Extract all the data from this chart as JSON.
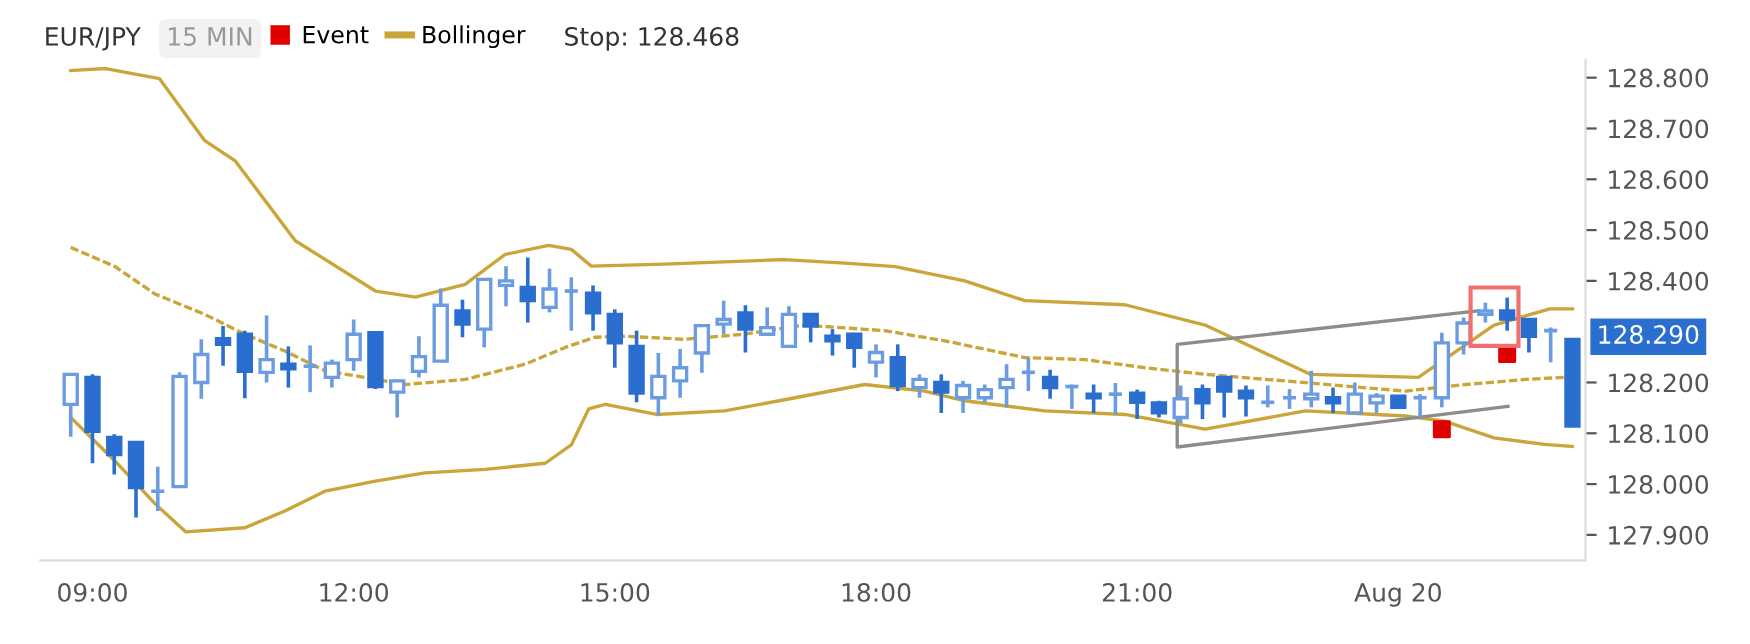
{
  "chart_data": {
    "type": "candlestick",
    "title": "EUR/JPY",
    "subtitle": "15 MIN",
    "annotations": [
      "Stop: 128.468",
      {
        "text": "128.290",
        "x": 26.15,
        "y": 128.29
      }
    ],
    "x": [
      8.75,
      9,
      9.25,
      9.5,
      9.75,
      10,
      10.25,
      10.5,
      10.75,
      11,
      11.25,
      11.5,
      11.75,
      12,
      12.25,
      12.5,
      12.75,
      13,
      13.25,
      13.5,
      13.75,
      14,
      14.25,
      14.5,
      14.75,
      15,
      15.25,
      15.5,
      15.75,
      16,
      16.25,
      16.5,
      16.75,
      17,
      17.25,
      17.5,
      17.75,
      18,
      18.25,
      18.5,
      18.75,
      19,
      19.25,
      19.5,
      19.75,
      20,
      20.25,
      20.5,
      20.75,
      21,
      21.25,
      21.5,
      21.75,
      22,
      22.25,
      22.5,
      22.75,
      23,
      23.25,
      23.5,
      23.75,
      24,
      24.25,
      24.5,
      24.75,
      25,
      25.25,
      25.5,
      25.75,
      26
    ],
    "ohlc": [
      [
        128.157,
        128.216,
        128.093,
        128.216
      ],
      [
        128.21,
        128.216,
        128.041,
        128.104
      ],
      [
        128.092,
        128.098,
        128.019,
        128.058
      ],
      [
        128.082,
        128.085,
        127.934,
        127.993
      ],
      [
        127.986,
        128.034,
        127.947,
        127.986
      ],
      [
        127.995,
        128.22,
        127.995,
        128.212
      ],
      [
        128.2,
        128.285,
        128.168,
        128.255
      ],
      [
        128.286,
        128.311,
        128.233,
        128.275
      ],
      [
        128.295,
        128.302,
        128.169,
        128.222
      ],
      [
        128.22,
        128.332,
        128.2,
        128.245
      ],
      [
        128.236,
        128.271,
        128.19,
        128.227
      ],
      [
        128.232,
        128.273,
        128.181,
        128.232
      ],
      [
        128.21,
        128.245,
        128.19,
        128.238
      ],
      [
        128.245,
        128.324,
        128.223,
        128.295
      ],
      [
        128.298,
        128.298,
        128.187,
        128.192
      ],
      [
        128.181,
        128.203,
        128.131,
        128.203
      ],
      [
        128.222,
        128.291,
        128.21,
        128.251
      ],
      [
        128.242,
        128.385,
        128.242,
        128.352
      ],
      [
        128.341,
        128.363,
        128.289,
        128.315
      ],
      [
        128.305,
        128.403,
        128.269,
        128.403
      ],
      [
        128.391,
        128.429,
        128.35,
        128.4
      ],
      [
        128.387,
        128.446,
        128.318,
        128.361
      ],
      [
        128.348,
        128.424,
        128.338,
        128.384
      ],
      [
        128.38,
        128.407,
        128.302,
        128.38
      ],
      [
        128.376,
        128.391,
        128.302,
        128.337
      ],
      [
        128.334,
        128.344,
        128.229,
        128.278
      ],
      [
        128.271,
        128.302,
        128.161,
        128.179
      ],
      [
        128.17,
        128.258,
        128.135,
        128.212
      ],
      [
        128.203,
        128.266,
        128.17,
        128.229
      ],
      [
        128.258,
        128.312,
        128.219,
        128.312
      ],
      [
        128.315,
        128.361,
        128.295,
        128.324
      ],
      [
        128.337,
        128.352,
        128.259,
        128.305
      ],
      [
        128.295,
        128.348,
        128.292,
        128.308
      ],
      [
        128.271,
        128.35,
        128.269,
        128.334
      ],
      [
        128.334,
        128.334,
        128.279,
        128.311
      ],
      [
        128.291,
        128.305,
        128.253,
        128.282
      ],
      [
        128.295,
        128.295,
        128.229,
        128.269
      ],
      [
        128.24,
        128.275,
        128.21,
        128.259
      ],
      [
        128.249,
        128.275,
        128.183,
        128.194
      ],
      [
        128.19,
        128.216,
        128.17,
        128.206
      ],
      [
        128.2,
        128.216,
        128.14,
        128.181
      ],
      [
        128.17,
        128.203,
        128.14,
        128.194
      ],
      [
        128.17,
        128.196,
        128.16,
        128.186
      ],
      [
        128.19,
        128.236,
        128.151,
        128.206
      ],
      [
        128.22,
        128.249,
        128.183,
        128.22
      ],
      [
        128.21,
        128.225,
        128.168,
        128.19
      ],
      [
        128.192,
        128.196,
        128.148,
        128.192
      ],
      [
        128.177,
        128.196,
        128.14,
        128.17
      ],
      [
        128.177,
        128.199,
        128.137,
        128.177
      ],
      [
        128.179,
        128.186,
        128.128,
        128.161
      ],
      [
        128.16,
        128.164,
        128.131,
        128.14
      ],
      [
        128.131,
        128.194,
        128.12,
        128.168
      ],
      [
        128.186,
        128.196,
        128.128,
        128.16
      ],
      [
        128.21,
        128.21,
        128.131,
        128.183
      ],
      [
        128.183,
        128.194,
        128.133,
        128.17
      ],
      [
        128.161,
        128.194,
        128.151,
        128.161
      ],
      [
        128.17,
        128.187,
        128.148,
        128.17
      ],
      [
        128.168,
        128.223,
        128.151,
        128.177
      ],
      [
        128.17,
        128.19,
        128.14,
        128.16
      ],
      [
        128.14,
        128.2,
        128.14,
        128.177
      ],
      [
        128.16,
        128.179,
        128.14,
        128.173
      ],
      [
        128.173,
        128.173,
        128.151,
        128.151
      ],
      [
        128.17,
        128.177,
        128.131,
        128.17
      ],
      [
        128.17,
        128.298,
        128.151,
        128.278
      ],
      [
        128.278,
        128.328,
        128.255,
        128.317
      ],
      [
        128.334,
        128.357,
        128.318,
        128.341
      ],
      [
        128.341,
        128.367,
        128.302,
        128.325
      ],
      [
        128.324,
        128.324,
        128.259,
        128.291
      ],
      [
        128.302,
        128.308,
        128.24,
        128.302
      ],
      [
        128.285,
        128.285,
        128.114,
        128.114
      ]
    ],
    "series": [
      {
        "type": "scatter",
        "name": "Event",
        "color": "#e00000",
        "marker": "square",
        "x": [
          24.5,
          25.25
        ],
        "values": [
          128.108,
          128.256
        ]
      },
      {
        "type": "line",
        "name": "Bollinger",
        "color": "#c9a53a",
        "x": [
          8.75,
          9.15,
          9.77,
          10.29,
          10.64,
          11.33,
          12.25,
          12.71,
          13.28,
          13.74,
          14.24,
          14.5,
          14.73,
          15.57,
          16.95,
          17.64,
          18.22,
          19.02,
          19.71,
          20.86,
          21.78,
          22.99,
          24.23,
          25.1,
          25.74,
          26.0
        ],
        "values": [
          128.814,
          128.818,
          128.798,
          128.676,
          128.636,
          128.479,
          128.38,
          128.368,
          128.393,
          128.452,
          128.47,
          128.462,
          128.429,
          128.433,
          128.442,
          128.435,
          128.428,
          128.4,
          128.361,
          128.353,
          128.313,
          128.216,
          128.21,
          128.313,
          128.345,
          128.345
        ]
      },
      {
        "type": "line",
        "color": "#c9a53a",
        "line_style": "dashed",
        "x": [
          8.75,
          9.26,
          9.72,
          10.29,
          10.75,
          11.21,
          11.67,
          12.13,
          12.59,
          13.28,
          13.97,
          14.43,
          14.77,
          15.12,
          15.8,
          16.49,
          17.18,
          18.1,
          18.79,
          19.71,
          20.4,
          21.09,
          21.78,
          22.7,
          24.08,
          24.77,
          25.46,
          25.9
        ],
        "values": [
          128.466,
          128.428,
          128.374,
          128.334,
          128.295,
          128.262,
          128.223,
          128.21,
          128.196,
          128.206,
          128.236,
          128.269,
          128.289,
          128.291,
          128.285,
          128.295,
          128.313,
          128.302,
          128.282,
          128.249,
          128.245,
          128.229,
          128.216,
          128.203,
          128.183,
          128.196,
          128.206,
          128.21
        ]
      },
      {
        "type": "line",
        "color": "#c9a53a",
        "x": [
          8.75,
          9.26,
          9.72,
          10.07,
          10.75,
          11.21,
          11.67,
          12.25,
          12.82,
          13.51,
          14.2,
          14.5,
          14.7,
          14.89,
          15.48,
          16.26,
          16.95,
          17.87,
          18.56,
          19.02,
          19.94,
          20.86,
          21.78,
          22.93,
          24.08,
          24.53,
          25.1,
          25.68,
          26.0
        ],
        "values": [
          128.131,
          128.045,
          127.961,
          127.906,
          127.914,
          127.947,
          127.986,
          128.006,
          128.022,
          128.029,
          128.041,
          128.077,
          128.148,
          128.157,
          128.137,
          128.144,
          128.166,
          128.196,
          128.183,
          128.164,
          128.144,
          128.137,
          128.108,
          128.144,
          128.134,
          128.124,
          128.091,
          128.078,
          128.074
        ]
      },
      {
        "type": "line",
        "color": "#8c8c8c",
        "x": [
          25.26,
          21.46,
          21.46,
          24.92
        ],
        "values": [
          128.153,
          128.073,
          128.275,
          128.341
        ]
      }
    ],
    "xlim": [
      8.4,
      26.15
    ],
    "ylim": [
      127.85,
      128.835
    ],
    "xticks": [
      {
        "value": 9,
        "label": "09:00"
      },
      {
        "value": 12,
        "label": "12:00"
      },
      {
        "value": 15,
        "label": "15:00"
      },
      {
        "value": 18,
        "label": "18:00"
      },
      {
        "value": 21,
        "label": "21:00"
      },
      {
        "value": 24,
        "label": "Aug 20"
      }
    ],
    "yticks": [
      {
        "value": 127.9,
        "label": "127.900"
      },
      {
        "value": 128.0,
        "label": "128.000"
      },
      {
        "value": 128.1,
        "label": "128.100"
      },
      {
        "value": 128.2,
        "label": "128.200"
      },
      {
        "value": 128.4,
        "label": "128.400"
      },
      {
        "value": 128.5,
        "label": "128.500"
      },
      {
        "value": 128.6,
        "label": "128.600"
      },
      {
        "value": 128.7,
        "label": "128.700"
      },
      {
        "value": 128.8,
        "label": "128.800"
      }
    ],
    "legend": "top left"
  }
}
